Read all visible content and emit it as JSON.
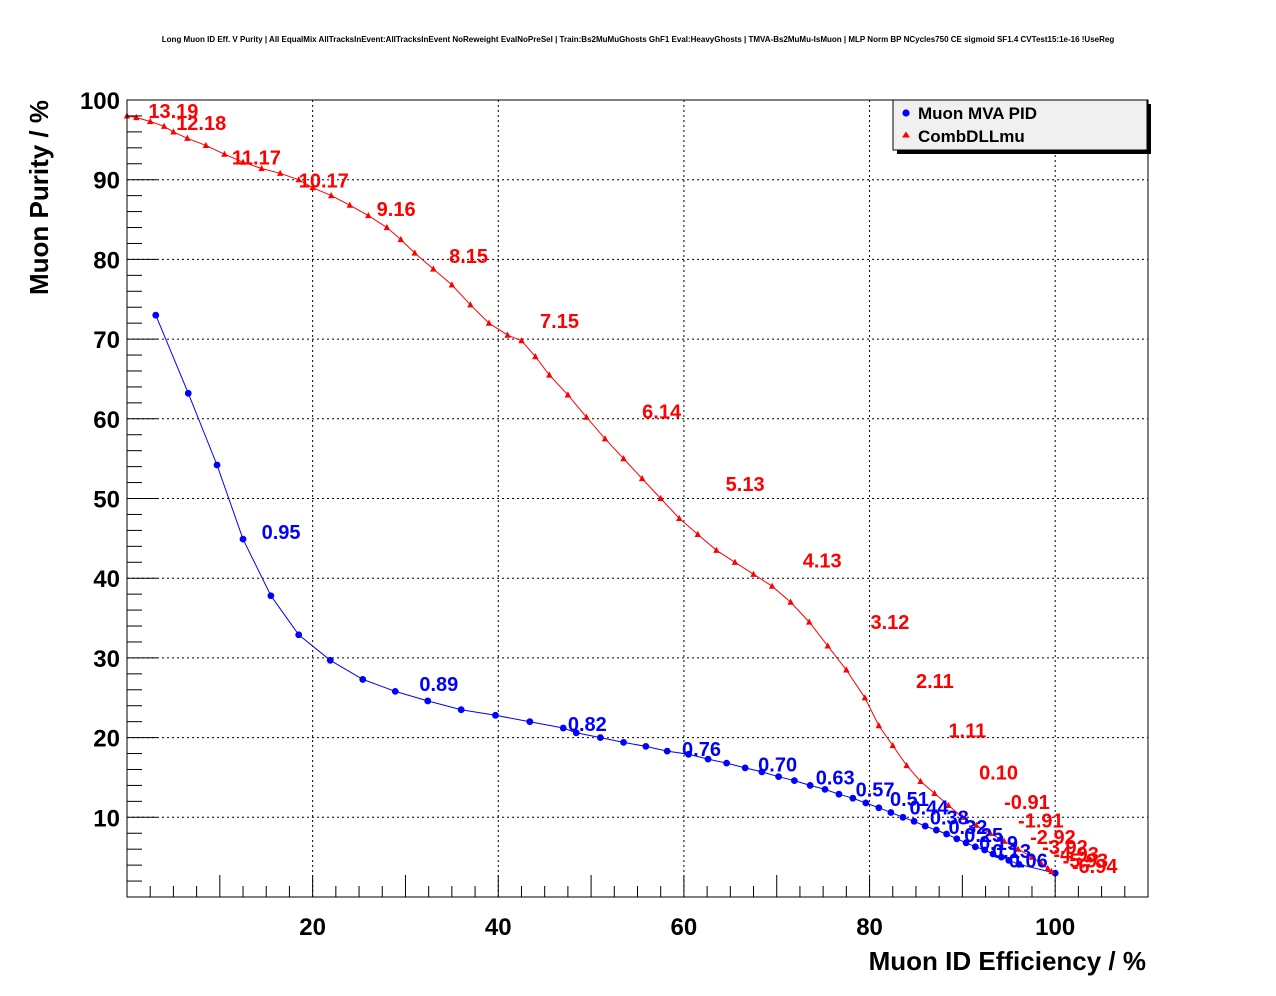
{
  "chart_data": {
    "type": "line",
    "title": "Long Muon ID Eff. V Purity | All EqualMix AllTracksInEvent:AllTracksInEvent NoReweight EvalNoPreSel | Train:Bs2MuMuGhosts GhF1 Eval:HeavyGhosts | TMVA-Bs2MuMu-IsMuon | MLP Norm BP NCycles750 CE sigmoid SF1.4 CVTest15:1e-16 !UseReg",
    "xlabel": "Muon ID Efficiency / %",
    "ylabel": "Muon Purity / %",
    "xlim": [
      0,
      110
    ],
    "ylim": [
      0,
      100
    ],
    "xticks": [
      20,
      40,
      60,
      80,
      100
    ],
    "yticks": [
      10,
      20,
      30,
      40,
      50,
      60,
      70,
      80,
      90,
      100
    ],
    "grid": true,
    "legend_position": "top-right",
    "series": [
      {
        "name": "Muon MVA PID",
        "color": "#0000ff",
        "marker": "circle",
        "x": [
          3.1,
          6.6,
          9.7,
          12.5,
          15.5,
          18.5,
          21.9,
          25.4,
          28.9,
          32.4,
          36.0,
          39.7,
          43.4,
          47.0,
          48.4,
          51.0,
          53.5,
          55.9,
          58.2,
          60.5,
          62.6,
          64.6,
          66.6,
          68.4,
          70.2,
          71.9,
          73.6,
          75.2,
          76.7,
          78.2,
          79.6,
          81.0,
          82.3,
          83.6,
          84.8,
          86.0,
          87.2,
          88.3,
          89.4,
          90.4,
          91.4,
          92.4,
          93.3,
          94.2,
          95.0,
          96.1,
          100.0
        ],
        "y": [
          73.0,
          63.2,
          54.2,
          44.9,
          37.8,
          32.9,
          29.7,
          27.3,
          25.8,
          24.6,
          23.5,
          22.8,
          22.0,
          21.2,
          20.6,
          20.0,
          19.4,
          18.9,
          18.3,
          17.9,
          17.3,
          16.8,
          16.2,
          15.7,
          15.1,
          14.6,
          14.0,
          13.5,
          12.9,
          12.4,
          11.8,
          11.2,
          10.6,
          10.0,
          9.5,
          8.9,
          8.4,
          7.9,
          7.3,
          6.8,
          6.3,
          5.9,
          5.4,
          5.0,
          4.6,
          4.1,
          3.0
        ],
        "labels": [
          {
            "text": "0.95",
            "x": 14.5,
            "y": 45.8
          },
          {
            "text": "0.89",
            "x": 31.5,
            "y": 26.7
          },
          {
            "text": "0.82",
            "x": 47.5,
            "y": 21.7
          },
          {
            "text": "0.76",
            "x": 59.8,
            "y": 18.6
          },
          {
            "text": "0.70",
            "x": 68.0,
            "y": 16.6
          },
          {
            "text": "0.63",
            "x": 74.2,
            "y": 15.0
          },
          {
            "text": "0.57",
            "x": 78.5,
            "y": 13.5
          },
          {
            "text": "0.51",
            "x": 82.2,
            "y": 12.3
          },
          {
            "text": "0.44",
            "x": 84.3,
            "y": 11.2
          },
          {
            "text": "0.38",
            "x": 86.5,
            "y": 10.0
          },
          {
            "text": "0.32",
            "x": 88.5,
            "y": 8.8
          },
          {
            "text": "0.25",
            "x": 90.2,
            "y": 7.8
          },
          {
            "text": "0.19",
            "x": 91.8,
            "y": 6.8
          },
          {
            "text": "0.13",
            "x": 93.2,
            "y": 5.8
          },
          {
            "text": "0.06",
            "x": 95.0,
            "y": 4.6
          }
        ]
      },
      {
        "name": "CombDLLmu",
        "color": "#ff0000",
        "marker": "triangle",
        "x": [
          0.0,
          1.0,
          2.5,
          4.0,
          5.0,
          6.5,
          8.5,
          10.5,
          12.5,
          14.5,
          16.5,
          18.5,
          20.0,
          22.0,
          24.0,
          26.0,
          28.0,
          29.5,
          31.0,
          33.0,
          35.0,
          37.0,
          39.0,
          41.0,
          42.5,
          44.0,
          45.5,
          47.5,
          49.5,
          51.5,
          53.5,
          55.5,
          57.5,
          59.5,
          61.5,
          63.5,
          65.5,
          67.5,
          69.5,
          71.5,
          73.5,
          75.5,
          77.5,
          79.5,
          81.0,
          82.5,
          84.0,
          85.5,
          87.0,
          88.5,
          90.0,
          91.5,
          93.0,
          94.5,
          96.0,
          97.5,
          98.5,
          99.2,
          99.6
        ],
        "y": [
          98.0,
          97.8,
          97.3,
          96.7,
          96.0,
          95.2,
          94.3,
          93.2,
          92.2,
          91.4,
          90.8,
          90.0,
          89.0,
          88.0,
          86.8,
          85.5,
          84.0,
          82.5,
          80.8,
          78.8,
          76.8,
          74.3,
          72.0,
          70.5,
          69.8,
          67.8,
          65.5,
          63.0,
          60.2,
          57.5,
          55.0,
          52.5,
          50.0,
          47.5,
          45.5,
          43.5,
          42.0,
          40.5,
          39.0,
          37.0,
          34.5,
          31.5,
          28.5,
          25.0,
          21.5,
          19.0,
          16.5,
          14.5,
          13.0,
          11.5,
          10.0,
          9.0,
          8.0,
          7.0,
          6.0,
          5.0,
          4.2,
          3.6,
          3.2
        ],
        "labels": [
          {
            "text": "13.19",
            "x": 2.3,
            "y": 98.6
          },
          {
            "text": "12.18",
            "x": 5.3,
            "y": 97.1
          },
          {
            "text": "11.17",
            "x": 11.3,
            "y": 92.8
          },
          {
            "text": "10.17",
            "x": 18.5,
            "y": 89.9
          },
          {
            "text": "9.16",
            "x": 26.9,
            "y": 86.3
          },
          {
            "text": "8.15",
            "x": 34.7,
            "y": 80.4
          },
          {
            "text": "7.15",
            "x": 44.5,
            "y": 72.3
          },
          {
            "text": "6.14",
            "x": 55.5,
            "y": 60.9
          },
          {
            "text": "5.13",
            "x": 64.5,
            "y": 51.8
          },
          {
            "text": "4.13",
            "x": 72.8,
            "y": 42.2
          },
          {
            "text": "3.12",
            "x": 80.1,
            "y": 34.5
          },
          {
            "text": "2.11",
            "x": 85.0,
            "y": 27.1
          },
          {
            "text": "1.11",
            "x": 88.5,
            "y": 20.9
          },
          {
            "text": "0.10",
            "x": 91.8,
            "y": 15.6
          },
          {
            "text": "-0.91",
            "x": 94.5,
            "y": 11.9
          },
          {
            "text": "-1.91",
            "x": 96.0,
            "y": 9.6
          },
          {
            "text": "-2.92",
            "x": 97.3,
            "y": 7.5
          },
          {
            "text": "-3.92",
            "x": 98.6,
            "y": 6.3
          },
          {
            "text": "-4.93",
            "x": 99.8,
            "y": 5.4
          },
          {
            "text": "-5.93",
            "x": 100.8,
            "y": 4.6
          },
          {
            "text": "-6.94",
            "x": 101.8,
            "y": 3.9
          }
        ]
      }
    ]
  }
}
